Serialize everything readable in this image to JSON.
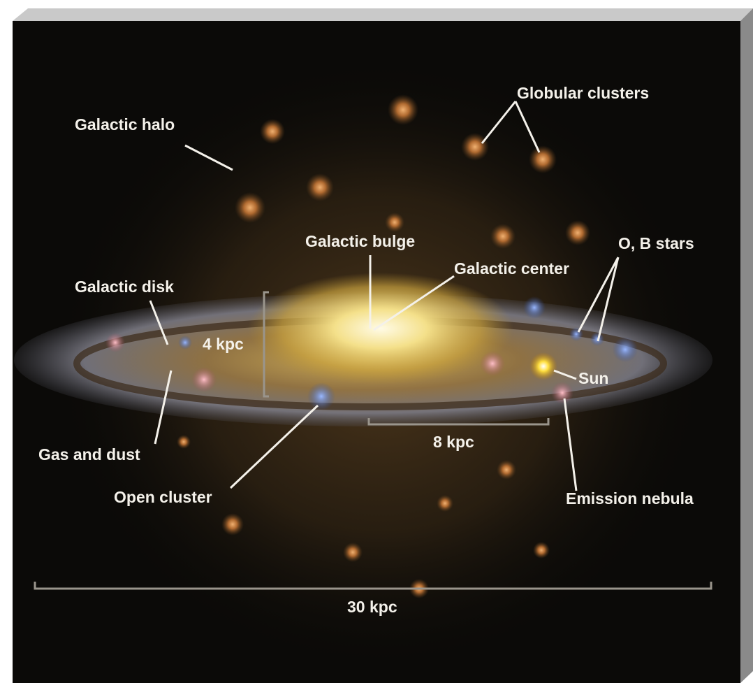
{
  "diagram": {
    "labels": [
      "Globular clusters",
      "Galactic halo",
      "Galactic bulge",
      "Galactic center",
      "O, B stars",
      "Galactic disk",
      "4 kpc",
      "Sun",
      "8 kpc",
      "Gas and dust",
      "Open cluster",
      "Emission nebula",
      "30 kpc"
    ]
  }
}
